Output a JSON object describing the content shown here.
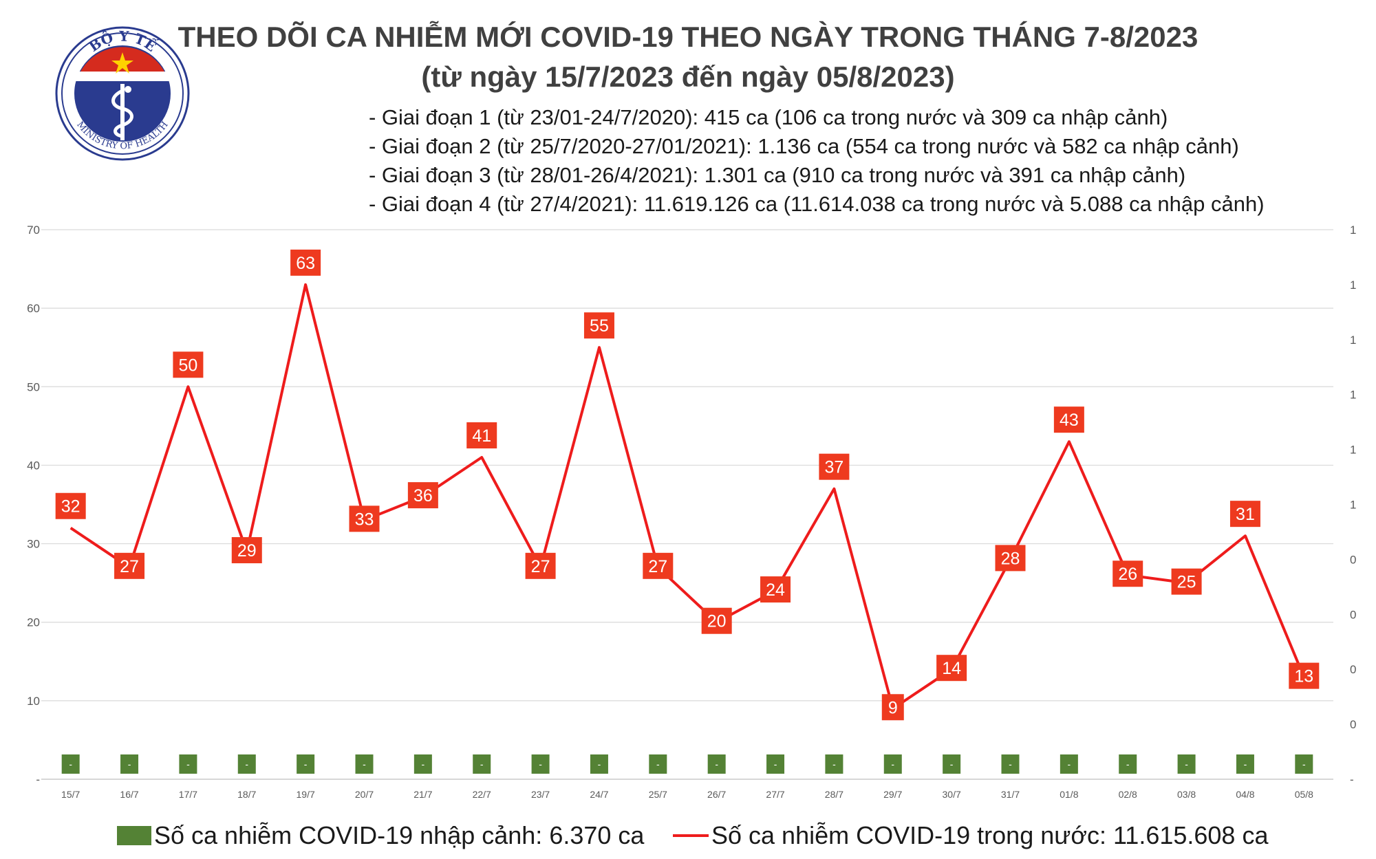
{
  "logo": {
    "top_text": "BỘ Y TẾ",
    "bottom_text": "MINISTRY OF HEALTH",
    "colors": {
      "blue": "#2a3b8f",
      "red": "#d52b1e",
      "star": "#ffd200"
    }
  },
  "header": {
    "title_line1": "THEO DÕI CA NHIỄM MỚI COVID-19 THEO NGÀY TRONG THÁNG 7-8/2023",
    "title_line2": "(từ ngày 15/7/2023 đến ngày 05/8/2023)"
  },
  "stages": [
    "- Giai đoạn 1 (từ 23/01-24/7/2020): 415 ca (106 ca trong nước và 309 ca nhập cảnh)",
    "- Giai đoạn 2 (từ 25/7/2020-27/01/2021): 1.136 ca (554 ca trong nước và 582 ca nhập cảnh)",
    "- Giai đoạn 3 (từ 28/01-26/4/2021): 1.301 ca (910 ca trong nước và 391 ca nhập cảnh)",
    "- Giai đoạn 4 (từ 27/4/2021): 11.619.126 ca (11.614.038 ca trong nước và 5.088 ca nhập cảnh)"
  ],
  "chart_data": {
    "type": "line",
    "categories": [
      "15/7",
      "16/7",
      "17/7",
      "18/7",
      "19/7",
      "20/7",
      "21/7",
      "22/7",
      "23/7",
      "24/7",
      "25/7",
      "26/7",
      "27/7",
      "28/7",
      "29/7",
      "30/7",
      "31/7",
      "01/8",
      "02/8",
      "03/8",
      "04/8",
      "05/8"
    ],
    "series": [
      {
        "name": "Số ca nhiễm COVID-19 trong nước: 11.615.608 ca",
        "type": "line",
        "axis": "left",
        "color": "#ee1c1c",
        "values": [
          32,
          27,
          50,
          29,
          63,
          33,
          36,
          41,
          27,
          55,
          27,
          20,
          24,
          37,
          9,
          14,
          28,
          43,
          26,
          25,
          31,
          13
        ]
      },
      {
        "name": "Số ca nhiễm COVID-19 nhập cảnh: 6.370 ca",
        "type": "bar",
        "axis": "right",
        "color": "#548235",
        "values": [
          0,
          0,
          0,
          0,
          0,
          0,
          0,
          0,
          0,
          0,
          0,
          0,
          0,
          0,
          0,
          0,
          0,
          0,
          0,
          0,
          0,
          0
        ],
        "value_labels": [
          "-",
          "-",
          "-",
          "-",
          "-",
          "-",
          "-",
          "-",
          "-",
          "-",
          "-",
          "-",
          "-",
          "-",
          "-",
          "-",
          "-",
          "-",
          "-",
          "-",
          "-",
          "-"
        ]
      }
    ],
    "left_axis": {
      "ylim": [
        0,
        70
      ],
      "ticks": [
        "-",
        "10",
        "20",
        "30",
        "40",
        "50",
        "60",
        "70"
      ]
    },
    "right_axis": {
      "ticks": [
        "-",
        "0",
        "0",
        "0",
        "0",
        "1",
        "1",
        "1",
        "1",
        "1",
        "1"
      ]
    },
    "grid": true,
    "legend_position": "bottom",
    "label_color": "#ee3a1f"
  }
}
